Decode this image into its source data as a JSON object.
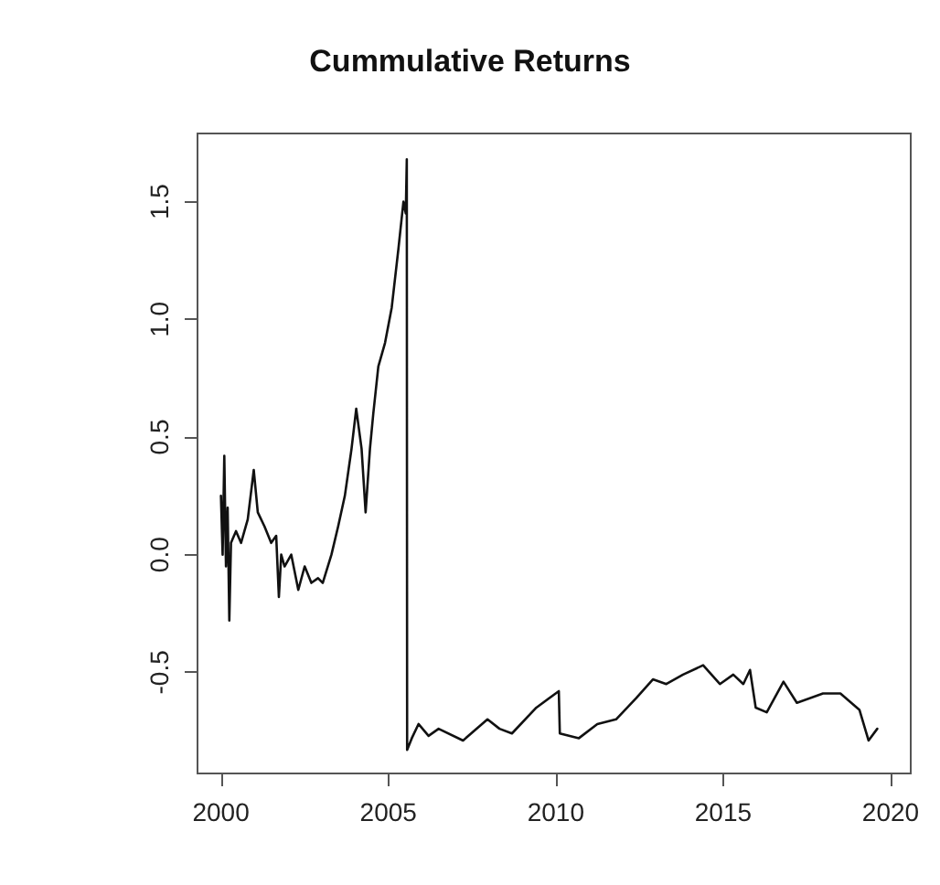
{
  "chart_data": {
    "type": "line",
    "title": "Cummulative Returns",
    "xlim": [
      1999.3,
      2020.6
    ],
    "xticks": [
      2000,
      2005,
      2010,
      2015,
      2020
    ],
    "ylim": [
      -0.93,
      1.79
    ],
    "yticks": [
      {
        "value": -0.5,
        "label": "-0.5"
      },
      {
        "value": 0,
        "label": "0.0"
      },
      {
        "value": 0.5,
        "label": "0.5"
      },
      {
        "value": 1,
        "label": "1.0"
      },
      {
        "value": 1.5,
        "label": "1.5"
      }
    ],
    "grid": false,
    "marker": "none",
    "line_style": "solid",
    "series": [
      {
        "color": "#111111",
        "x": [
          2000.0,
          2000.05,
          2000.1,
          2000.15,
          2000.2,
          2000.25,
          2000.3,
          2000.45,
          2000.6,
          2000.8,
          2000.98,
          2001.1,
          2001.3,
          2001.5,
          2001.65,
          2001.73,
          2001.8,
          2001.9,
          2002.1,
          2002.31,
          2002.5,
          2002.7,
          2002.9,
          2003.04,
          2003.3,
          2003.5,
          2003.7,
          2003.9,
          2004.04,
          2004.2,
          2004.32,
          2004.45,
          2004.55,
          2004.7,
          2004.9,
          2005.1,
          2005.3,
          2005.45,
          2005.52,
          2005.55,
          2005.56,
          2005.7,
          2005.9,
          2006.2,
          2006.5,
          2007.23,
          2007.96,
          2008.32,
          2008.69,
          2009.42,
          2010.09,
          2010.12,
          2010.69,
          2011.24,
          2011.8,
          2012.4,
          2012.9,
          2013.3,
          2013.8,
          2014.4,
          2014.9,
          2015.3,
          2015.6,
          2015.8,
          2015.97,
          2016.3,
          2016.8,
          2017.2,
          2017.98,
          2018.5,
          2019.07,
          2019.34,
          2019.6
        ],
        "values": [
          0.25,
          0.0,
          0.42,
          -0.05,
          0.2,
          -0.28,
          0.05,
          0.1,
          0.05,
          0.15,
          0.36,
          0.18,
          0.12,
          0.05,
          0.08,
          -0.18,
          0.0,
          -0.05,
          0.0,
          -0.15,
          -0.05,
          -0.12,
          -0.1,
          -0.12,
          0.0,
          0.12,
          0.25,
          0.45,
          0.62,
          0.45,
          0.18,
          0.45,
          0.6,
          0.8,
          0.9,
          1.05,
          1.3,
          1.5,
          1.45,
          1.68,
          -0.83,
          -0.78,
          -0.72,
          -0.77,
          -0.74,
          -0.79,
          -0.7,
          -0.74,
          -0.76,
          -0.65,
          -0.58,
          -0.76,
          -0.78,
          -0.72,
          -0.7,
          -0.61,
          -0.53,
          -0.55,
          -0.51,
          -0.47,
          -0.55,
          -0.51,
          -0.55,
          -0.49,
          -0.65,
          -0.67,
          -0.54,
          -0.63,
          -0.59,
          -0.59,
          -0.66,
          -0.79,
          -0.74
        ]
      }
    ]
  }
}
